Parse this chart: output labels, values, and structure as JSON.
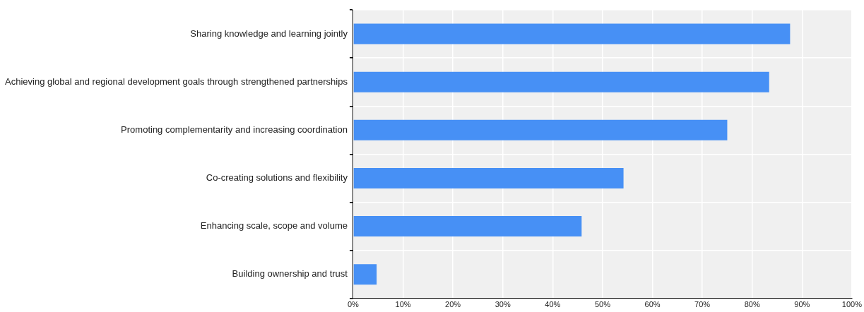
{
  "chart_data": {
    "type": "bar",
    "orientation": "horizontal",
    "categories": [
      "Sharing knowledge and learning jointly",
      "Achieving global and regional development goals through strengthened partnerships",
      "Promoting complementarity and increasing coordination",
      "Co-creating solutions and flexibility",
      "Enhancing scale, scope and volume",
      "Building ownership and trust"
    ],
    "values": [
      87.6,
      83.4,
      75.0,
      54.2,
      45.8,
      4.7
    ],
    "color": "#4790f5",
    "xlim": [
      0,
      100
    ],
    "xticks": [
      {
        "value": 0,
        "label": "0%"
      },
      {
        "value": 10,
        "label": "10%"
      },
      {
        "value": 20,
        "label": "20%"
      },
      {
        "value": 30,
        "label": "30%"
      },
      {
        "value": 40,
        "label": "40%"
      },
      {
        "value": 50,
        "label": "50%"
      },
      {
        "value": 60,
        "label": "60%"
      },
      {
        "value": 70,
        "label": "70%"
      },
      {
        "value": 80,
        "label": "80%"
      },
      {
        "value": 90,
        "label": "90%"
      },
      {
        "value": 100,
        "label": "100%"
      }
    ],
    "grid": true
  }
}
